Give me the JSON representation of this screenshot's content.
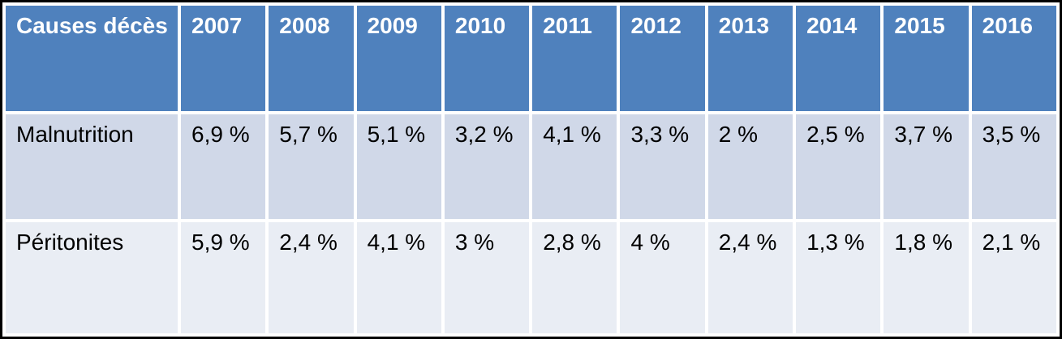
{
  "chart_data": {
    "type": "table",
    "columns": [
      "Causes décès",
      "2007",
      "2008",
      "2009",
      "2010",
      "2011",
      "2012",
      "2013",
      "2014",
      "2015",
      "2016"
    ],
    "rows": [
      {
        "label": "Malnutrition",
        "values": [
          "6,9 %",
          "5,7 %",
          "5,1 %",
          "3,2 %",
          "4,1 %",
          "3,3 %",
          "2 %",
          "2,5 %",
          "3,7 %",
          "3,5 %"
        ]
      },
      {
        "label": "Péritonites",
        "values": [
          "5,9 %",
          "2,4 %",
          "4,1 %",
          "3 %",
          "2,8 %",
          "4 %",
          "2,4 %",
          "1,3 %",
          "1,8 %",
          "2,1 %"
        ]
      }
    ],
    "layout": {
      "header_position": "top",
      "banded_rows": true
    }
  },
  "colors": {
    "header_bg": "#4F81BD",
    "header_text": "#FFFFFF",
    "band_dark": "#D0D8E8",
    "band_light": "#E9EDF4",
    "body_text": "#000000",
    "outer_border": "#000000",
    "cell_gap": "#FFFFFF"
  }
}
